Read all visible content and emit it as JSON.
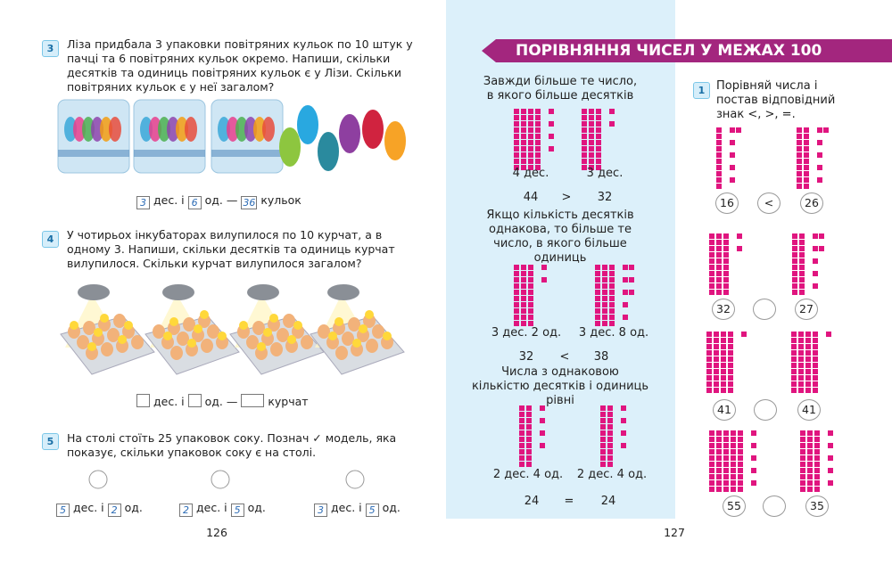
{
  "left_page": {
    "tasks": [
      {
        "number": "3",
        "text": "Ліза придбала 3 упаковки повітряних кульок по 10 штук у пачці та 6 повітряних кульок окремо. Напиши, скільки десятків та одиниць повітряних кульок є у Лізи. Скільки повітряних кульок є у неї загалом?",
        "answer": {
          "tens": "3",
          "tens_label": "дес. і",
          "ones": "6",
          "ones_label": "од. —",
          "total": "36",
          "unit": "кульок"
        }
      },
      {
        "number": "4",
        "text": "У чотирьох інкубаторах вилупилося по 10 курчат, а в одному 3. Напиши, скільки десятків та одиниць курчат вилупилося. Скільки курчат вилупилося загалом?",
        "answer": {
          "tens_label": "дес. і",
          "ones_label": "од. —",
          "unit": "курчат"
        }
      },
      {
        "number": "5",
        "text": "На столі стоїть 25 упаковок соку. Познач ✓ модель, яка показує, скільки упаковок соку є на столі.",
        "options": [
          {
            "tens": "5",
            "tens_label": "дес. і",
            "ones": "2",
            "ones_label": "од."
          },
          {
            "tens": "2",
            "tens_label": "дес. і",
            "ones": "5",
            "ones_label": "од."
          },
          {
            "tens": "3",
            "tens_label": "дес. і",
            "ones": "5",
            "ones_label": "од."
          }
        ]
      }
    ],
    "page_number": "126"
  },
  "right_page": {
    "title": "ПОРІВНЯННЯ ЧИСЕЛ У МЕЖАХ 100",
    "rules": [
      {
        "text": "Завжди більше те число, в якого більше десятків",
        "labels": [
          "4 дес.",
          "3 дес."
        ],
        "left": 44,
        "sign": ">",
        "right": 32
      },
      {
        "text": "Якщо кількість десятків однакова, то більше те число, в якого більше одиниць",
        "labels": [
          "3 дес. 2 од.",
          "3 дес. 8 од."
        ],
        "left": 32,
        "sign": "<",
        "right": 38
      },
      {
        "text": "Числа з однаковою кількістю десятків і одиниць рівні",
        "labels": [
          "2 дес. 4 од.",
          "2 дес. 4 од."
        ],
        "left": 24,
        "sign": "=",
        "right": 24
      }
    ],
    "task": {
      "number": "1",
      "text": "Порівняй числа і постав відповідний знак <, >, =.",
      "pairs": [
        {
          "left": 16,
          "sign": "<",
          "right": 26
        },
        {
          "left": 32,
          "right": 27
        },
        {
          "left": 41,
          "right": 41
        },
        {
          "left": 55,
          "right": 35
        }
      ]
    },
    "page_number": "127"
  }
}
